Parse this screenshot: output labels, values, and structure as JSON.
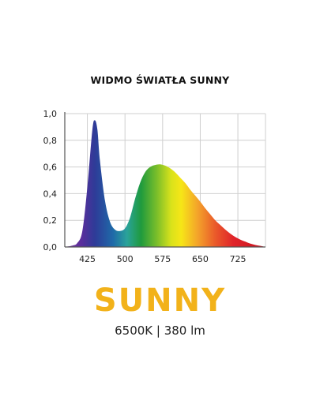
{
  "header": {
    "title": "WIDMO ŚWIATŁA SUNNY"
  },
  "chart_data": {
    "type": "area",
    "title": "WIDMO ŚWIATŁA SUNNY",
    "xlabel": "",
    "ylabel": "",
    "xlim": [
      380,
      780
    ],
    "ylim": [
      0,
      1.0
    ],
    "x_ticks": [
      "425",
      "500",
      "575",
      "650",
      "725"
    ],
    "y_ticks": [
      "0,0",
      "0,2",
      "0,4",
      "0,6",
      "0,8",
      "1,0"
    ],
    "grid": true,
    "fill": "spectral-gradient",
    "series": [
      {
        "x": [
          380,
          395,
          405,
          415,
          425,
          435,
          440,
          445,
          450,
          460,
          470,
          480,
          490,
          500,
          510,
          520,
          530,
          540,
          550,
          560,
          570,
          580,
          590,
          600,
          610,
          620,
          630,
          640,
          650,
          660,
          670,
          680,
          690,
          700,
          710,
          720,
          730,
          740,
          750,
          760,
          770,
          780
        ],
        "values": [
          0.0,
          0.01,
          0.03,
          0.12,
          0.45,
          0.88,
          0.95,
          0.88,
          0.65,
          0.35,
          0.19,
          0.13,
          0.12,
          0.14,
          0.22,
          0.36,
          0.48,
          0.56,
          0.6,
          0.615,
          0.62,
          0.61,
          0.59,
          0.56,
          0.52,
          0.48,
          0.43,
          0.385,
          0.34,
          0.29,
          0.245,
          0.2,
          0.165,
          0.13,
          0.1,
          0.075,
          0.055,
          0.04,
          0.025,
          0.015,
          0.008,
          0.0
        ]
      }
    ]
  },
  "product": {
    "name": "SUNNY",
    "spec": "6500K | 380 lm"
  },
  "colors": {
    "brand": "#f2b21a",
    "grid": "#cfcfcf",
    "axis": "#555555"
  }
}
